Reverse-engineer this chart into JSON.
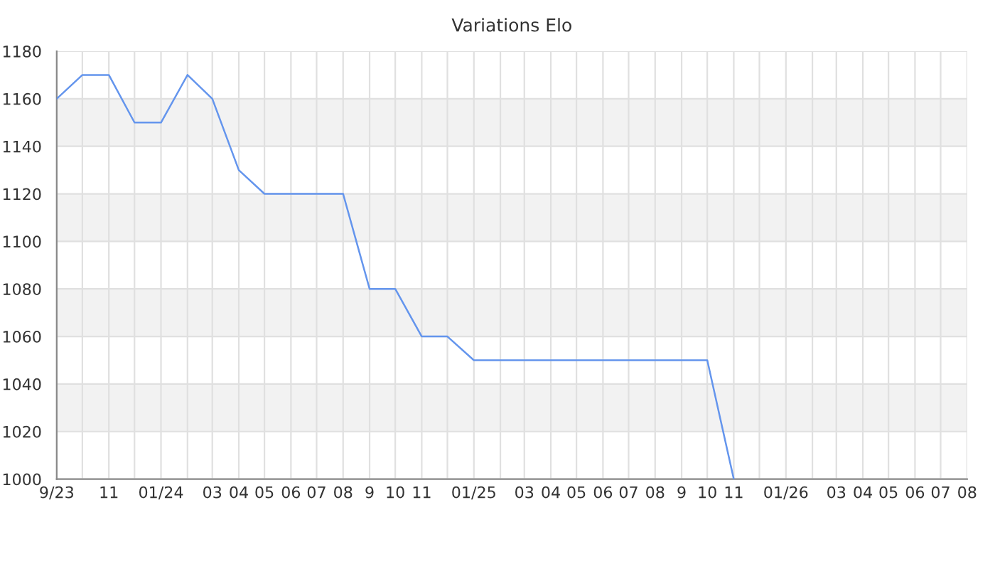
{
  "chart_data": {
    "type": "line",
    "title": "Variations Elo",
    "x": [
      "2023-09",
      "2023-10",
      "2023-11",
      "2023-12",
      "2024-01",
      "2024-02",
      "2024-03",
      "2024-04",
      "2024-05",
      "2024-06",
      "2024-07",
      "2024-08",
      "2024-09",
      "2024-10",
      "2024-11",
      "2024-12",
      "2025-01",
      "2025-02",
      "2025-03",
      "2025-04",
      "2025-05",
      "2025-06",
      "2025-07",
      "2025-08",
      "2025-09",
      "2025-10",
      "2025-11"
    ],
    "series": [
      {
        "color": "#6495ed",
        "values": [
          1160,
          1170,
          1170,
          1150,
          1150,
          1170,
          1160,
          1130,
          1120,
          1120,
          1120,
          1120,
          1080,
          1080,
          1060,
          1060,
          1050,
          1050,
          1050,
          1050,
          1050,
          1050,
          1050,
          1050,
          1050,
          1050,
          1000
        ]
      }
    ],
    "xlim": [
      "2023-09",
      "2026-08"
    ],
    "xticks": [
      {
        "value": "2023-09",
        "label": "9/23"
      },
      {
        "value": "2023-10",
        "label": null
      },
      {
        "value": "2023-11",
        "label": "11"
      },
      {
        "value": "2023-12",
        "label": null
      },
      {
        "value": "2024-01",
        "label": "01/24"
      },
      {
        "value": "2024-02",
        "label": null
      },
      {
        "value": "2024-03",
        "label": "03"
      },
      {
        "value": "2024-04",
        "label": "04"
      },
      {
        "value": "2024-05",
        "label": "05"
      },
      {
        "value": "2024-06",
        "label": "06"
      },
      {
        "value": "2024-07",
        "label": "07"
      },
      {
        "value": "2024-08",
        "label": "08"
      },
      {
        "value": "2024-09",
        "label": "9"
      },
      {
        "value": "2024-10",
        "label": "10"
      },
      {
        "value": "2024-11",
        "label": "11"
      },
      {
        "value": "2024-12",
        "label": null
      },
      {
        "value": "2025-01",
        "label": "01/25"
      },
      {
        "value": "2025-02",
        "label": null
      },
      {
        "value": "2025-03",
        "label": "03"
      },
      {
        "value": "2025-04",
        "label": "04"
      },
      {
        "value": "2025-05",
        "label": "05"
      },
      {
        "value": "2025-06",
        "label": "06"
      },
      {
        "value": "2025-07",
        "label": "07"
      },
      {
        "value": "2025-08",
        "label": "08"
      },
      {
        "value": "2025-09",
        "label": "9"
      },
      {
        "value": "2025-10",
        "label": "10"
      },
      {
        "value": "2025-11",
        "label": "11"
      },
      {
        "value": "2025-12",
        "label": null
      },
      {
        "value": "2026-01",
        "label": "01/26"
      },
      {
        "value": "2026-02",
        "label": null
      },
      {
        "value": "2026-03",
        "label": "03"
      },
      {
        "value": "2026-04",
        "label": "04"
      },
      {
        "value": "2026-05",
        "label": "05"
      },
      {
        "value": "2026-06",
        "label": "06"
      },
      {
        "value": "2026-07",
        "label": "07"
      },
      {
        "value": "2026-08",
        "label": "08"
      }
    ],
    "ylim": [
      1000,
      1180
    ],
    "yticks": [
      1000,
      1020,
      1040,
      1060,
      1080,
      1100,
      1120,
      1140,
      1160,
      1180
    ],
    "bands": [
      {
        "axis": "y",
        "from": 1020,
        "to": 1040,
        "color": "#f2f2f2"
      },
      {
        "axis": "y",
        "from": 1060,
        "to": 1080,
        "color": "#f2f2f2"
      },
      {
        "axis": "y",
        "from": 1100,
        "to": 1120,
        "color": "#f2f2f2"
      },
      {
        "axis": "y",
        "from": 1140,
        "to": 1160,
        "color": "#f2f2f2"
      }
    ],
    "grid": true,
    "legend": false,
    "marker": "none",
    "line_style": "solid"
  }
}
